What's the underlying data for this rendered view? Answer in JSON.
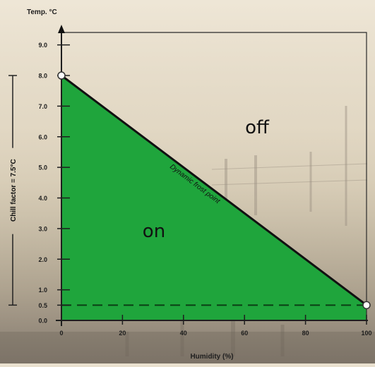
{
  "chart_data": {
    "type": "area",
    "xlabel": "Humidity (%)",
    "ylabel": "Temp. °C",
    "xlim": [
      0,
      100
    ],
    "ylim": [
      0,
      9.6
    ],
    "x_ticks": [
      0,
      20,
      40,
      60,
      80,
      100
    ],
    "x_tick_labels": [
      "0",
      "20",
      "40",
      "60",
      "80",
      "100"
    ],
    "y_ticks": [
      0.0,
      0.5,
      1.0,
      2.0,
      3.0,
      4.0,
      5.0,
      6.0,
      7.0,
      8.0,
      9.0
    ],
    "y_tick_labels": [
      "0.0",
      "0.5",
      "1.0",
      "2.0",
      "3.0",
      "4.0",
      "5.0",
      "6.0",
      "7.0",
      "8.0",
      "9.0"
    ],
    "series": [
      {
        "name": "Dynamic frost point",
        "x": [
          0,
          100
        ],
        "y": [
          8.0,
          0.5
        ]
      }
    ],
    "threshold_line": {
      "y": 0.5,
      "style": "dashed"
    },
    "regions": {
      "below": "on",
      "above": "off"
    },
    "side_annotation": "Chill factor = 7.5°C",
    "grid": false,
    "colors": {
      "on_fill": "#1fa53c",
      "line": "#111111",
      "axis": "#1e1e1e"
    }
  }
}
